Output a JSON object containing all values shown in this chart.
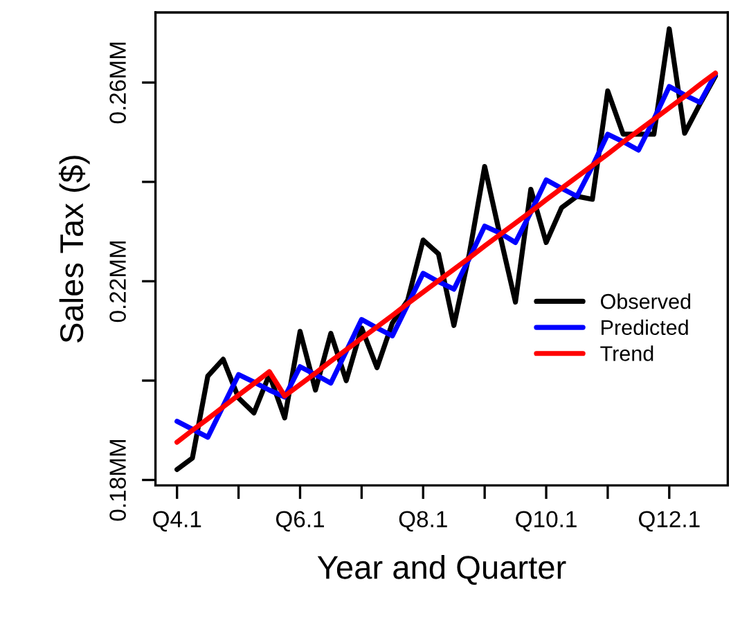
{
  "chart_data": {
    "type": "line",
    "xlabel": "Year and Quarter",
    "ylabel": "Sales Tax ($)",
    "categories": [
      "Q4.1",
      null,
      null,
      null,
      null,
      null,
      null,
      null,
      "Q6.1",
      null,
      null,
      null,
      null,
      null,
      null,
      null,
      "Q8.1",
      null,
      null,
      null,
      null,
      null,
      null,
      null,
      "Q10.1",
      null,
      null,
      null,
      null,
      null,
      null,
      null,
      "Q12.1",
      null,
      null,
      null
    ],
    "series": [
      {
        "name": "Observed",
        "color": "#000000",
        "values": [
          0.1821,
          0.1844,
          0.2009,
          0.2043,
          0.1965,
          0.1935,
          0.2012,
          0.1925,
          0.2099,
          0.1981,
          0.2095,
          0.2,
          0.2106,
          0.2026,
          0.2116,
          0.2162,
          0.2283,
          0.2255,
          0.2111,
          0.2255,
          0.2431,
          0.2292,
          0.2158,
          0.2385,
          0.2278,
          0.2348,
          0.2371,
          0.2365,
          0.2583,
          0.2496,
          0.2496,
          0.2496,
          0.2708,
          0.2498,
          0.2557,
          0.2613
        ]
      },
      {
        "name": "Predicted",
        "color": "#0000ff",
        "values": [
          0.1918,
          0.1902,
          0.1886,
          0.1949,
          0.2012,
          0.1997,
          0.1981,
          0.1967,
          0.2028,
          0.2012,
          0.1995,
          0.2059,
          0.2123,
          0.2106,
          0.209,
          0.2153,
          0.2216,
          0.2199,
          0.2184,
          0.2246,
          0.2311,
          0.2297,
          0.2278,
          0.2339,
          0.2404,
          0.2387,
          0.2371,
          0.2431,
          0.2496,
          0.2481,
          0.2464,
          0.2526,
          0.2592,
          0.2575,
          0.256,
          0.2617
        ]
      },
      {
        "name": "Trend",
        "color": "#ff0000",
        "values": [
          0.1876,
          0.19,
          0.1923,
          0.1947,
          0.1971,
          0.1994,
          0.2018,
          0.1969,
          0.1992,
          0.2015,
          0.2039,
          0.2062,
          0.2085,
          0.2108,
          0.2131,
          0.2155,
          0.2178,
          0.2201,
          0.2224,
          0.2247,
          0.2271,
          0.2294,
          0.2317,
          0.234,
          0.2364,
          0.2387,
          0.241,
          0.2433,
          0.2456,
          0.248,
          0.2503,
          0.2526,
          0.2549,
          0.2572,
          0.2596,
          0.2619
        ]
      }
    ],
    "ylim": [
      0.1789,
      0.2741
    ],
    "yticks": [
      {
        "value": 0.18,
        "label": "0.18MM"
      },
      {
        "value": 0.2,
        "label": null
      },
      {
        "value": 0.22,
        "label": "0.22MM"
      },
      {
        "value": 0.24,
        "label": null
      },
      {
        "value": 0.26,
        "label": "0.26MM"
      }
    ],
    "legend": "right",
    "grid": false,
    "line_style": "solid",
    "marker": "none"
  }
}
